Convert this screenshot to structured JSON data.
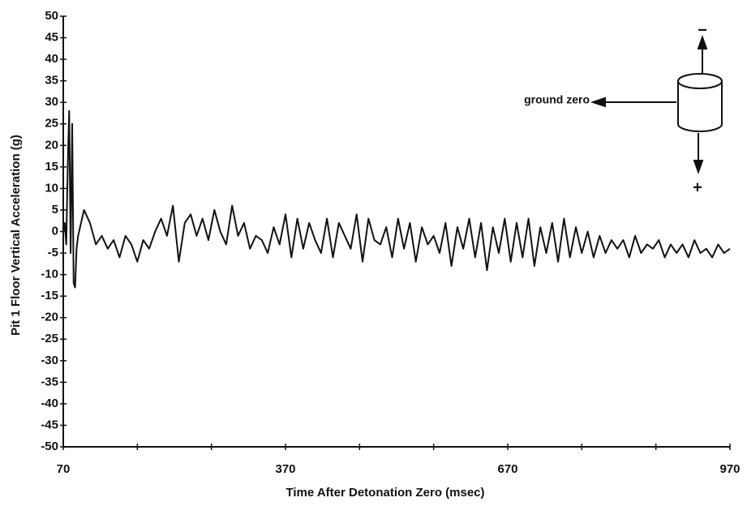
{
  "chart_data": {
    "type": "line",
    "xlabel": "Time After Detonation Zero (msec)",
    "ylabel": "Pit 1 Floor Vertical Acceleration (g)",
    "annotations": {
      "ground_zero": "ground zero",
      "minus": "−",
      "plus": "+"
    },
    "color": "#111111",
    "xlim": [
      70,
      970
    ],
    "ylim": [
      -50,
      50
    ],
    "xticks": [
      70,
      370,
      670,
      970
    ],
    "xminorticks": [
      170,
      270,
      470,
      570,
      770,
      870
    ],
    "yticks": [
      -50,
      -45,
      -40,
      -35,
      -30,
      -25,
      -20,
      -15,
      -10,
      -5,
      0,
      5,
      10,
      15,
      20,
      25,
      30,
      35,
      40,
      45,
      50
    ],
    "x": [
      70,
      72,
      74,
      76,
      78,
      80,
      82,
      84,
      86,
      88,
      90,
      98,
      106,
      114,
      122,
      130,
      138,
      146,
      154,
      162,
      170,
      178,
      186,
      194,
      202,
      210,
      218,
      226,
      234,
      242,
      250,
      258,
      266,
      274,
      282,
      290,
      298,
      306,
      314,
      322,
      330,
      338,
      346,
      354,
      362,
      370,
      378,
      386,
      394,
      402,
      410,
      418,
      426,
      434,
      442,
      450,
      458,
      466,
      474,
      482,
      490,
      498,
      506,
      514,
      522,
      530,
      538,
      546,
      554,
      562,
      570,
      578,
      586,
      594,
      602,
      610,
      618,
      626,
      634,
      642,
      650,
      658,
      666,
      674,
      682,
      690,
      698,
      706,
      714,
      722,
      730,
      738,
      746,
      754,
      762,
      770,
      778,
      786,
      794,
      802,
      810,
      818,
      826,
      834,
      842,
      850,
      858,
      866,
      874,
      882,
      890,
      898,
      906,
      914,
      922,
      930,
      938,
      946,
      954,
      962,
      970
    ],
    "values": [
      0,
      2,
      -3,
      15,
      28,
      -5,
      25,
      -12,
      -13,
      -4,
      -1,
      5,
      2,
      -3,
      -1,
      -4,
      -2,
      -6,
      -1,
      -3,
      -7,
      -2,
      -4,
      0,
      3,
      -1,
      6,
      -7,
      2,
      4,
      -1,
      3,
      -2,
      5,
      0,
      -3,
      6,
      -1,
      2,
      -4,
      -1,
      -2,
      -5,
      1,
      -3,
      4,
      -6,
      3,
      -4,
      2,
      -2,
      -5,
      3,
      -6,
      2,
      -1,
      -4,
      4,
      -7,
      3,
      -2,
      -3,
      1,
      -6,
      3,
      -4,
      2,
      -7,
      1,
      -3,
      -1,
      -5,
      2,
      -8,
      1,
      -4,
      3,
      -6,
      2,
      -9,
      1,
      -5,
      3,
      -7,
      2,
      -6,
      3,
      -8,
      1,
      -5,
      2,
      -7,
      3,
      -6,
      1,
      -5,
      0,
      -6,
      -1,
      -5,
      -2,
      -4,
      -2,
      -6,
      -1,
      -5,
      -3,
      -4,
      -2,
      -6,
      -3,
      -5,
      -3,
      -6,
      -2,
      -5,
      -4,
      -6,
      -3,
      -5,
      -4
    ]
  }
}
